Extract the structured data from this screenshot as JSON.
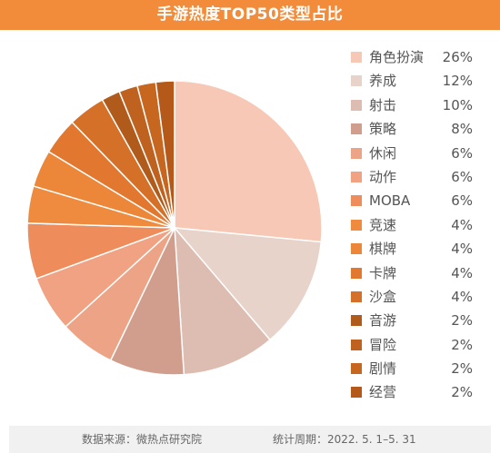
{
  "chart_data": {
    "type": "pie",
    "title": "手游热度TOP50类型占比",
    "labels": [
      "角色扮演",
      "养成",
      "射击",
      "策略",
      "休闲",
      "动作",
      "MOBA",
      "竞速",
      "棋牌",
      "卡牌",
      "沙盒",
      "音游",
      "冒险",
      "剧情",
      "经营"
    ],
    "values": [
      26,
      12,
      10,
      8,
      6,
      6,
      6,
      4,
      4,
      4,
      4,
      2,
      2,
      2,
      2
    ],
    "value_labels": [
      "26%",
      "12%",
      "10%",
      "8%",
      "6%",
      "6%",
      "6%",
      "4%",
      "4%",
      "4%",
      "4%",
      "2%",
      "2%",
      "2%",
      "2%"
    ],
    "colors": [
      "#F6C8B5",
      "#E8D3CA",
      "#DDBDB1",
      "#D19E8D",
      "#EDA385",
      "#F0A283",
      "#EE8C5C",
      "#EE8B3E",
      "#EC8639",
      "#E27730",
      "#D47028",
      "#B05B1B",
      "#BF621F",
      "#C7661F",
      "#B5591A"
    ],
    "legend_position": "right",
    "start_angle": "top, clockwise"
  },
  "header": {
    "color": "#F28C3A"
  },
  "footer": {
    "source": "数据来源：微热点研究院",
    "period": "统计周期：2022. 5. 1–5. 31"
  }
}
